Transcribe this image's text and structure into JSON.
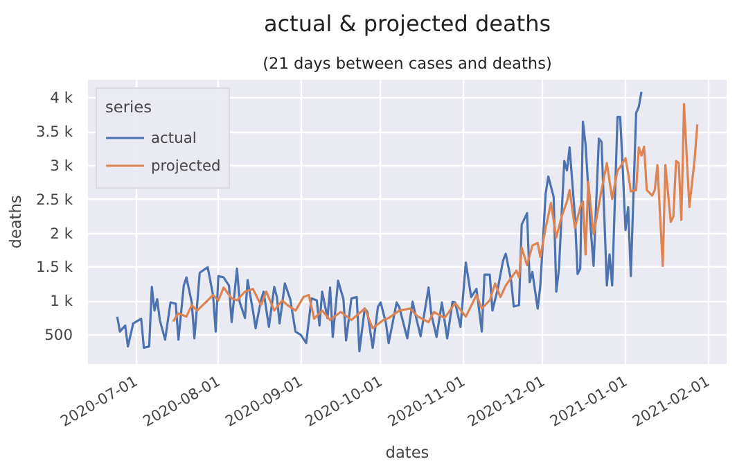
{
  "chart_data": {
    "type": "line",
    "title": "actual & projected deaths",
    "subtitle": "(21 days between cases and deaths)",
    "xlabel": "dates",
    "ylabel": "deaths",
    "legend_title": "series",
    "legend": "top left",
    "grid": true,
    "marker": "none",
    "line_style": "solid",
    "xlim": [
      "2020-06-13",
      "2021-02-08"
    ],
    "ylim": [
      70,
      4270
    ],
    "xticks": [
      {
        "value": "2020-07-01",
        "label": "2020-07-01"
      },
      {
        "value": "2020-08-01",
        "label": "2020-08-01"
      },
      {
        "value": "2020-09-01",
        "label": "2020-09-01"
      },
      {
        "value": "2020-10-01",
        "label": "2020-10-01"
      },
      {
        "value": "2020-11-01",
        "label": "2020-11-01"
      },
      {
        "value": "2020-12-01",
        "label": "2020-12-01"
      },
      {
        "value": "2021-01-01",
        "label": "2021-01-01"
      },
      {
        "value": "2021-02-01",
        "label": "2021-02-01"
      }
    ],
    "yticks": [
      500,
      {
        "value": 1000,
        "label": "1 k"
      },
      {
        "value": 1500,
        "label": "1.5 k"
      },
      {
        "value": 2000,
        "label": "2 k"
      },
      {
        "value": 2500,
        "label": "2.5 k"
      },
      {
        "value": 3000,
        "label": "3 k"
      },
      {
        "value": 3500,
        "label": "3.5 k"
      },
      {
        "value": 4000,
        "label": "4 k"
      }
    ],
    "series": [
      {
        "name": "actual",
        "color": "#4c72b0",
        "x": [
          "2020-06-24",
          "2020-06-25",
          "2020-06-27",
          "2020-06-28",
          "2020-06-30",
          "2020-07-03",
          "2020-07-04",
          "2020-07-06",
          "2020-07-07",
          "2020-07-08",
          "2020-07-09",
          "2020-07-10",
          "2020-07-12",
          "2020-07-14",
          "2020-07-16",
          "2020-07-17",
          "2020-07-19",
          "2020-07-20",
          "2020-07-22",
          "2020-07-23",
          "2020-07-25",
          "2020-07-28",
          "2020-07-30",
          "2020-07-31",
          "2020-08-01",
          "2020-08-03",
          "2020-08-05",
          "2020-08-06",
          "2020-08-08",
          "2020-08-09",
          "2020-08-11",
          "2020-08-12",
          "2020-08-14",
          "2020-08-15",
          "2020-08-17",
          "2020-08-18",
          "2020-08-20",
          "2020-08-22",
          "2020-08-23",
          "2020-08-24",
          "2020-08-26",
          "2020-08-28",
          "2020-08-30",
          "2020-09-01",
          "2020-09-03",
          "2020-09-05",
          "2020-09-07",
          "2020-09-08",
          "2020-09-09",
          "2020-09-11",
          "2020-09-12",
          "2020-09-13",
          "2020-09-15",
          "2020-09-17",
          "2020-09-18",
          "2020-09-20",
          "2020-09-22",
          "2020-09-23",
          "2020-09-25",
          "2020-09-26",
          "2020-09-28",
          "2020-09-30",
          "2020-10-01",
          "2020-10-03",
          "2020-10-04",
          "2020-10-07",
          "2020-10-08",
          "2020-10-11",
          "2020-10-13",
          "2020-10-14",
          "2020-10-16",
          "2020-10-19",
          "2020-10-20",
          "2020-10-22",
          "2020-10-24",
          "2020-10-26",
          "2020-10-28",
          "2020-10-29",
          "2020-10-31",
          "2020-11-02",
          "2020-11-04",
          "2020-11-06",
          "2020-11-08",
          "2020-11-09",
          "2020-11-11",
          "2020-11-12",
          "2020-11-14",
          "2020-11-16",
          "2020-11-17",
          "2020-11-19",
          "2020-11-20",
          "2020-11-22",
          "2020-11-23",
          "2020-11-25",
          "2020-11-26",
          "2020-11-27",
          "2020-11-29",
          "2020-11-30",
          "2020-12-02",
          "2020-12-03",
          "2020-12-05",
          "2020-12-06",
          "2020-12-07",
          "2020-12-09",
          "2020-12-10",
          "2020-12-11",
          "2020-12-13",
          "2020-12-14",
          "2020-12-15",
          "2020-12-16",
          "2020-12-17",
          "2020-12-19",
          "2020-12-20",
          "2020-12-22",
          "2020-12-23",
          "2020-12-25",
          "2020-12-26",
          "2020-12-27",
          "2020-12-29",
          "2020-12-30",
          "2020-12-31",
          "2021-01-01",
          "2021-01-02",
          "2021-01-03",
          "2021-01-05",
          "2021-01-06",
          "2021-01-07"
        ],
        "values": [
          770,
          550,
          640,
          330,
          670,
          740,
          310,
          330,
          1210,
          860,
          1030,
          720,
          430,
          980,
          960,
          430,
          1230,
          1350,
          980,
          450,
          1420,
          1500,
          1090,
          550,
          1370,
          1350,
          1230,
          690,
          1480,
          990,
          750,
          1310,
          860,
          600,
          1010,
          1140,
          620,
          1210,
          1060,
          670,
          1260,
          1030,
          550,
          500,
          380,
          1040,
          1010,
          640,
          1140,
          750,
          1200,
          470,
          1300,
          1030,
          420,
          1040,
          1060,
          260,
          890,
          840,
          310,
          920,
          980,
          670,
          380,
          980,
          910,
          450,
          990,
          810,
          480,
          1200,
          810,
          470,
          980,
          450,
          990,
          980,
          620,
          1570,
          1060,
          1180,
          550,
          1390,
          1390,
          860,
          1180,
          1600,
          1700,
          1310,
          920,
          940,
          2130,
          2300,
          1280,
          1430,
          890,
          1230,
          2590,
          2840,
          2540,
          1140,
          1480,
          3070,
          2930,
          3270,
          2250,
          1400,
          1480,
          3650,
          3310,
          2030,
          1520,
          3400,
          3350,
          1230,
          1690,
          1230,
          3720,
          3720,
          2930,
          2050,
          2390,
          1370,
          3780,
          3870,
          4090
        ]
      },
      {
        "name": "projected",
        "color": "#dd8452",
        "x": [
          "2020-07-15",
          "2020-07-17",
          "2020-07-20",
          "2020-07-22",
          "2020-07-24",
          "2020-07-28",
          "2020-07-30",
          "2020-08-01",
          "2020-08-03",
          "2020-08-06",
          "2020-08-08",
          "2020-08-11",
          "2020-08-14",
          "2020-08-17",
          "2020-08-19",
          "2020-08-22",
          "2020-08-25",
          "2020-08-27",
          "2020-08-30",
          "2020-09-02",
          "2020-09-04",
          "2020-09-06",
          "2020-09-09",
          "2020-09-12",
          "2020-09-16",
          "2020-09-20",
          "2020-09-25",
          "2020-09-28",
          "2020-10-02",
          "2020-10-04",
          "2020-10-08",
          "2020-10-12",
          "2020-10-15",
          "2020-10-19",
          "2020-10-21",
          "2020-10-25",
          "2020-10-29",
          "2020-11-02",
          "2020-11-06",
          "2020-11-08",
          "2020-11-11",
          "2020-11-13",
          "2020-11-15",
          "2020-11-17",
          "2020-11-21",
          "2020-11-22",
          "2020-11-23",
          "2020-11-25",
          "2020-11-27",
          "2020-11-29",
          "2020-11-30",
          "2020-12-02",
          "2020-12-04",
          "2020-12-06",
          "2020-12-08",
          "2020-12-10",
          "2020-12-11",
          "2020-12-13",
          "2020-12-15",
          "2020-12-16",
          "2020-12-17",
          "2020-12-18",
          "2020-12-20",
          "2020-12-21",
          "2020-12-23",
          "2020-12-25",
          "2020-12-27",
          "2020-12-29",
          "2020-12-30",
          "2021-01-01",
          "2021-01-02",
          "2021-01-03",
          "2021-01-05",
          "2021-01-06",
          "2021-01-07",
          "2021-01-08",
          "2021-01-09",
          "2021-01-11",
          "2021-01-12",
          "2021-01-13",
          "2021-01-15",
          "2021-01-16",
          "2021-01-18",
          "2021-01-19",
          "2021-01-20",
          "2021-01-21",
          "2021-01-22",
          "2021-01-23",
          "2021-01-25",
          "2021-01-27",
          "2021-01-28"
        ],
        "values": [
          700,
          820,
          770,
          940,
          860,
          1010,
          1090,
          1010,
          1200,
          1040,
          1010,
          1140,
          1180,
          940,
          1140,
          860,
          1010,
          940,
          860,
          1060,
          1090,
          740,
          860,
          720,
          840,
          720,
          890,
          600,
          720,
          750,
          860,
          890,
          770,
          690,
          840,
          750,
          970,
          770,
          1090,
          890,
          1010,
          1260,
          1060,
          1230,
          1450,
          1350,
          1790,
          1530,
          1820,
          1860,
          1650,
          2080,
          2450,
          1940,
          2250,
          2470,
          2640,
          2080,
          2390,
          2470,
          1690,
          2760,
          1990,
          2200,
          2640,
          3040,
          2510,
          2930,
          2980,
          3110,
          2890,
          2620,
          2640,
          3270,
          3150,
          3280,
          2640,
          2560,
          2640,
          3010,
          1520,
          3010,
          2170,
          2250,
          3070,
          3040,
          2200,
          3910,
          2390,
          3100,
          3610
        ]
      }
    ]
  }
}
